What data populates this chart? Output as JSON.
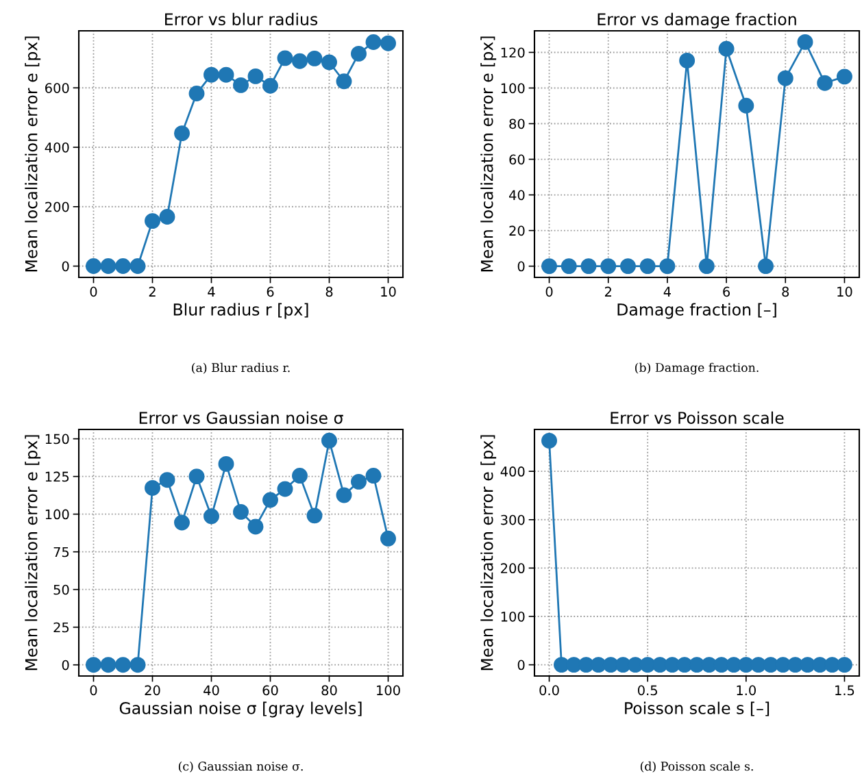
{
  "chart_data": [
    {
      "type": "line",
      "title": "Error vs blur radius",
      "xlabel": "Blur radius r [px]",
      "ylabel": "Mean localization error e [px]",
      "annotations": [
        "(a) Blur radius r."
      ],
      "x": [
        0,
        0.5,
        1,
        1.5,
        2,
        2.5,
        3,
        3.5,
        4,
        4.5,
        5,
        5.5,
        6,
        6.5,
        7,
        7.5,
        8,
        8.5,
        9,
        9.5,
        10
      ],
      "series": [
        {
          "color": "#1f77b4",
          "values": [
            0,
            0,
            0,
            0,
            152,
            166,
            447,
            581,
            644,
            644,
            609,
            639,
            607,
            700,
            690,
            699,
            686,
            622,
            715,
            754,
            750
          ]
        }
      ],
      "xlim": [
        -0.5,
        10.5
      ],
      "xticks": [
        0,
        2,
        4,
        6,
        8,
        10
      ],
      "ylim": [
        -38,
        792
      ],
      "yticks": [
        0,
        200,
        400,
        600
      ],
      "grid": true,
      "marker": "circle",
      "line_style": "solid"
    },
    {
      "type": "line",
      "title": "Error vs damage fraction",
      "xlabel": "Damage fraction [–]",
      "ylabel": "Mean localization error e [px]",
      "annotations": [
        "(b) Damage fraction."
      ],
      "x": [
        0,
        0.667,
        1.333,
        2,
        2.667,
        3.333,
        4,
        4.667,
        5.333,
        6,
        6.667,
        7.333,
        8,
        8.667,
        9.333,
        10
      ],
      "series": [
        {
          "color": "#1f77b4",
          "values": [
            0,
            0,
            0,
            0,
            0,
            0,
            0,
            115.4,
            0,
            122,
            90.1,
            0,
            105.5,
            125.8,
            102.8,
            106.4
          ]
        }
      ],
      "xlim": [
        -0.5,
        10.5
      ],
      "xticks": [
        0,
        2,
        4,
        6,
        8,
        10
      ],
      "ylim": [
        -6.3,
        132.1
      ],
      "yticks": [
        0,
        20,
        40,
        60,
        80,
        100,
        120
      ],
      "grid": true,
      "marker": "circle",
      "line_style": "solid"
    },
    {
      "type": "line",
      "title": "Error vs Gaussian noise σ",
      "xlabel": "Gaussian noise σ [gray levels]",
      "ylabel": "Mean localization error e [px]",
      "annotations": [
        "(c) Gaussian noise σ."
      ],
      "x": [
        0,
        5,
        10,
        15,
        20,
        25,
        30,
        35,
        40,
        45,
        50,
        55,
        60,
        65,
        70,
        75,
        80,
        85,
        90,
        95,
        100
      ],
      "series": [
        {
          "color": "#1f77b4",
          "values": [
            0,
            0,
            0,
            0,
            117.4,
            122.7,
            94.4,
            125,
            98.6,
            133.3,
            101.5,
            91.7,
            109.4,
            116.7,
            125.5,
            99,
            148.8,
            112.6,
            121.5,
            125.5,
            83.8
          ]
        }
      ],
      "xlim": [
        -5,
        105
      ],
      "xticks": [
        0,
        20,
        40,
        60,
        80,
        100
      ],
      "ylim": [
        -7.4,
        156.2
      ],
      "yticks": [
        0,
        25,
        50,
        75,
        100,
        125,
        150
      ],
      "grid": true,
      "marker": "circle",
      "line_style": "solid"
    },
    {
      "type": "line",
      "title": "Error vs Poisson scale",
      "xlabel": "Poisson scale s [–]",
      "ylabel": "Mean localization error e [px]",
      "annotations": [
        "(d) Poisson scale s."
      ],
      "x": [
        0,
        0.0625,
        0.125,
        0.1875,
        0.25,
        0.3125,
        0.375,
        0.4375,
        0.5,
        0.5625,
        0.625,
        0.6875,
        0.75,
        0.8125,
        0.875,
        0.9375,
        1,
        1.0625,
        1.125,
        1.1875,
        1.25,
        1.3125,
        1.375,
        1.4375,
        1.5
      ],
      "series": [
        {
          "color": "#1f77b4",
          "values": [
            463.4,
            0,
            0,
            0,
            0,
            0,
            0,
            0,
            0,
            0,
            0,
            0,
            0,
            0,
            0,
            0,
            0,
            0,
            0,
            0,
            0,
            0,
            0,
            0,
            0
          ]
        }
      ],
      "xlim": [
        -0.075,
        1.575
      ],
      "xticks": [
        {
          "value": 0,
          "label": "0.0"
        },
        0.5,
        {
          "value": 1,
          "label": "1.0"
        },
        1.5
      ],
      "ylim": [
        -23.2,
        486.6
      ],
      "yticks": [
        0,
        100,
        200,
        300,
        400
      ],
      "grid": true,
      "marker": "circle",
      "line_style": "solid"
    }
  ]
}
